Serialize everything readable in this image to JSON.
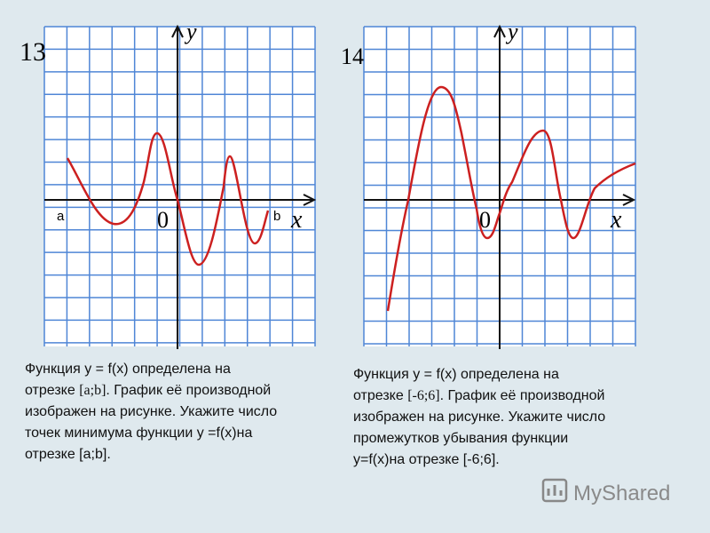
{
  "problems": [
    {
      "number": "13",
      "y_label": "y",
      "x_label": "x",
      "origin_label": "0",
      "a_label": "a",
      "b_label": "b",
      "lines": [
        [
          "Функция y = f(x) определена на"
        ],
        [
          "отрезке ",
          "[a;b]",
          ". График её производной"
        ],
        [
          "изображен на рисунке. Укажите число"
        ],
        [
          "точек минимума функции y =f(x)на"
        ],
        [
          "отрезке [a;b]."
        ]
      ]
    },
    {
      "number": "14",
      "y_label": "y",
      "x_label": "x",
      "origin_label": "0",
      "lines": [
        [
          "Функция y = f(x) определена на"
        ],
        [
          "отрезке ",
          "[-6;6]",
          ". График её производной"
        ],
        [
          "изображен на рисунке. Укажите число"
        ],
        [
          "промежутков убывания функции"
        ],
        [
          "y=f(x)на отрезке [-6;6]."
        ]
      ]
    }
  ],
  "watermark": "MyShared"
}
